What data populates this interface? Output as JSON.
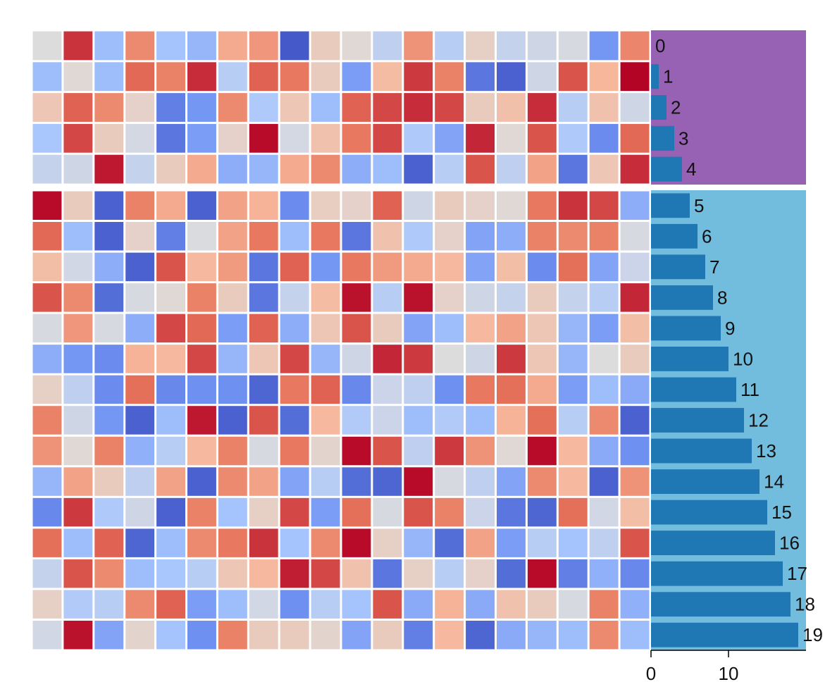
{
  "chart_data": {
    "type": "heatmap",
    "title": "",
    "rows": 20,
    "cols": 20,
    "groups": [
      {
        "name": "",
        "rows": [
          0,
          1,
          2,
          3,
          4
        ],
        "color": "#9762b4"
      },
      {
        "name": "",
        "rows": [
          5,
          6,
          7,
          8,
          9,
          10,
          11,
          12,
          13,
          14,
          15,
          16,
          17,
          18,
          19
        ],
        "color": "#72bcde"
      }
    ],
    "colormap": "coolwarm",
    "colormap_stops": [
      "#3b4cc0",
      "#7093f3",
      "#aac7fd",
      "#dddcdc",
      "#f7b89c",
      "#e7745b",
      "#b40426"
    ],
    "bar_color": "#1f77b4",
    "bar_chart": {
      "type": "bar",
      "orientation": "horizontal",
      "categories": [
        "0",
        "1",
        "2",
        "3",
        "4",
        "5",
        "6",
        "7",
        "8",
        "9",
        "10",
        "11",
        "12",
        "13",
        "14",
        "15",
        "16",
        "17",
        "18",
        "19"
      ],
      "values": [
        0,
        1,
        2,
        3,
        4,
        5,
        6,
        7,
        8,
        9,
        10,
        11,
        12,
        13,
        14,
        15,
        16,
        17,
        18,
        19
      ],
      "data_labels": [
        "0",
        "1",
        "2",
        "3",
        "4",
        "5",
        "6",
        "7",
        "8",
        "9",
        "10",
        "11",
        "12",
        "13",
        "14",
        "15",
        "16",
        "17",
        "18",
        "19"
      ],
      "xlim": [
        0,
        20
      ],
      "xticks": [
        0,
        10
      ],
      "xtick_labels": [
        "0",
        "10"
      ]
    },
    "values": [
      [
        0.5,
        0.93,
        0.3,
        0.78,
        0.32,
        0.28,
        0.7,
        0.75,
        0.03,
        0.58,
        0.52,
        0.4,
        0.76,
        0.38,
        0.56,
        0.42,
        0.45,
        0.48,
        0.18,
        0.79
      ],
      [
        0.3,
        0.52,
        0.3,
        0.85,
        0.8,
        0.94,
        0.38,
        0.86,
        0.82,
        0.58,
        0.2,
        0.65,
        0.92,
        0.8,
        0.1,
        0.05,
        0.45,
        0.88,
        0.67,
        1.0
      ],
      [
        0.6,
        0.86,
        0.78,
        0.55,
        0.12,
        0.18,
        0.78,
        0.35,
        0.6,
        0.3,
        0.86,
        0.9,
        0.94,
        0.9,
        0.58,
        0.63,
        0.94,
        0.38,
        0.62,
        0.45
      ],
      [
        0.33,
        0.9,
        0.58,
        0.47,
        0.1,
        0.2,
        0.55,
        0.99,
        0.47,
        0.62,
        0.82,
        0.9,
        0.35,
        0.22,
        0.95,
        0.52,
        0.88,
        0.35,
        0.15,
        0.85
      ],
      [
        0.42,
        0.45,
        0.97,
        0.42,
        0.58,
        0.7,
        0.25,
        0.28,
        0.7,
        0.78,
        0.25,
        0.3,
        0.05,
        0.38,
        0.88,
        0.4,
        0.72,
        0.1,
        0.6,
        0.94
      ],
      [
        0.99,
        0.58,
        0.05,
        0.8,
        0.7,
        0.05,
        0.72,
        0.68,
        0.15,
        0.57,
        0.55,
        0.86,
        0.45,
        0.58,
        0.55,
        0.52,
        0.82,
        0.93,
        0.9,
        0.25
      ],
      [
        0.85,
        0.3,
        0.05,
        0.55,
        0.12,
        0.49,
        0.72,
        0.82,
        0.3,
        0.82,
        0.1,
        0.62,
        0.35,
        0.55,
        0.22,
        0.25,
        0.8,
        0.78,
        0.8,
        0.48
      ],
      [
        0.64,
        0.46,
        0.25,
        0.05,
        0.88,
        0.66,
        0.74,
        0.1,
        0.86,
        0.18,
        0.82,
        0.74,
        0.7,
        0.66,
        0.22,
        0.64,
        0.15,
        0.84,
        0.22,
        0.44
      ],
      [
        0.88,
        0.78,
        0.08,
        0.48,
        0.52,
        0.8,
        0.58,
        0.1,
        0.42,
        0.65,
        0.98,
        0.38,
        0.98,
        0.55,
        0.45,
        0.42,
        0.58,
        0.42,
        0.38,
        0.95
      ],
      [
        0.48,
        0.75,
        0.48,
        0.25,
        0.9,
        0.85,
        0.2,
        0.86,
        0.25,
        0.6,
        0.88,
        0.58,
        0.22,
        0.3,
        0.66,
        0.72,
        0.6,
        0.28,
        0.2,
        0.64
      ],
      [
        0.25,
        0.18,
        0.15,
        0.68,
        0.66,
        0.9,
        0.28,
        0.6,
        0.9,
        0.28,
        0.45,
        0.95,
        0.92,
        0.5,
        0.45,
        0.92,
        0.6,
        0.28,
        0.5,
        0.58
      ],
      [
        0.56,
        0.4,
        0.15,
        0.84,
        0.14,
        0.16,
        0.16,
        0.06,
        0.82,
        0.86,
        0.14,
        0.44,
        0.4,
        0.16,
        0.82,
        0.84,
        0.7,
        0.2,
        0.3,
        0.24
      ],
      [
        0.8,
        0.45,
        0.18,
        0.05,
        0.3,
        0.97,
        0.05,
        0.88,
        0.08,
        0.66,
        0.36,
        0.44,
        0.3,
        0.36,
        0.3,
        0.68,
        0.84,
        0.38,
        0.78,
        0.05
      ],
      [
        0.76,
        0.52,
        0.8,
        0.26,
        0.38,
        0.66,
        0.8,
        0.48,
        0.82,
        0.54,
        0.99,
        0.88,
        0.4,
        0.92,
        0.76,
        0.52,
        0.99,
        0.66,
        0.24,
        0.16
      ],
      [
        0.28,
        0.72,
        0.58,
        0.4,
        0.72,
        0.05,
        0.78,
        0.72,
        0.22,
        0.38,
        0.08,
        0.06,
        0.99,
        0.48,
        0.4,
        0.22,
        0.78,
        0.66,
        0.05,
        0.76
      ],
      [
        0.14,
        0.92,
        0.35,
        0.45,
        0.05,
        0.8,
        0.32,
        0.56,
        0.9,
        0.2,
        0.84,
        0.48,
        0.88,
        0.8,
        0.44,
        0.1,
        0.06,
        0.84,
        0.46,
        0.64
      ],
      [
        0.84,
        0.3,
        0.86,
        0.06,
        0.3,
        0.78,
        0.82,
        0.93,
        0.32,
        0.78,
        0.99,
        0.56,
        0.28,
        0.08,
        0.72,
        0.2,
        0.38,
        0.32,
        0.4,
        0.88
      ],
      [
        0.42,
        0.88,
        0.78,
        0.3,
        0.33,
        0.38,
        0.6,
        0.66,
        0.96,
        0.9,
        0.62,
        0.1,
        0.56,
        0.38,
        0.55,
        0.08,
        0.99,
        0.12,
        0.26,
        0.14
      ],
      [
        0.56,
        0.36,
        0.38,
        0.78,
        0.86,
        0.2,
        0.3,
        0.46,
        0.16,
        0.38,
        0.32,
        0.88,
        0.24,
        0.68,
        0.24,
        0.62,
        0.58,
        0.48,
        0.8,
        0.26
      ],
      [
        0.46,
        0.98,
        0.22,
        0.54,
        0.32,
        0.16,
        0.8,
        0.58,
        0.58,
        0.54,
        0.22,
        0.58,
        0.12,
        0.66,
        0.06,
        0.24,
        0.28,
        0.3,
        0.78,
        0.3
      ]
    ]
  }
}
